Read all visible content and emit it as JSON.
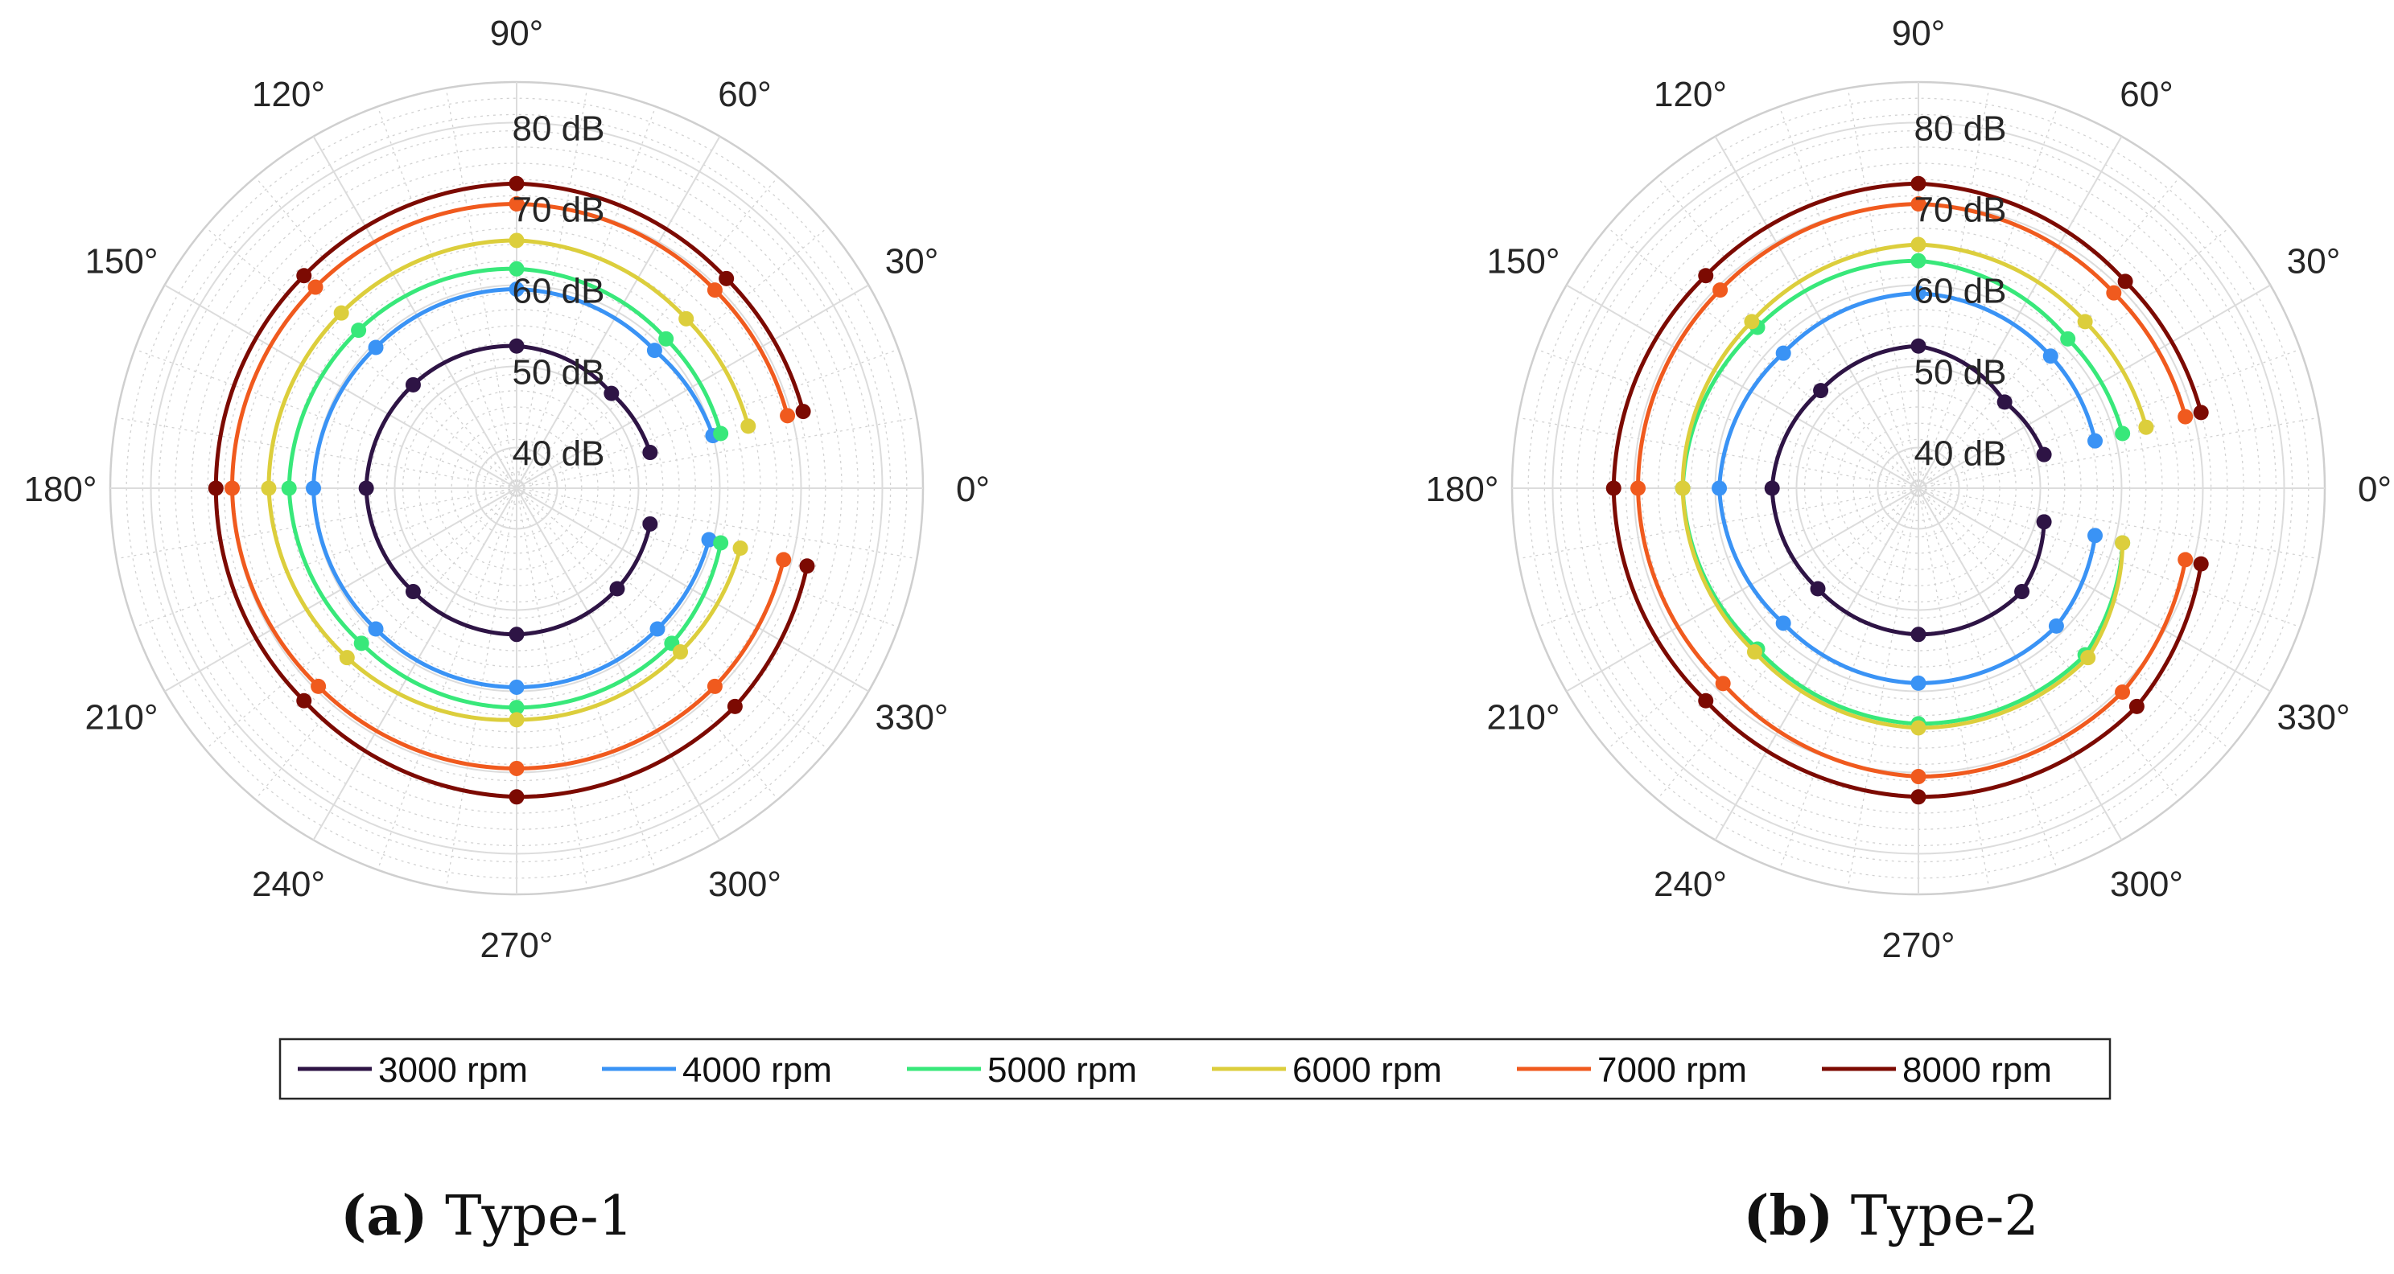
{
  "chart_data": {
    "shared": {
      "type": "polar-line",
      "r_range": [
        35,
        85
      ],
      "r_ticks": [
        40,
        50,
        60,
        70,
        80
      ],
      "r_tick_labels": [
        "40 dB",
        "50 dB",
        "60 dB",
        "70 dB",
        "80 dB"
      ],
      "theta_tick_labels": [
        "0°",
        "30°",
        "60°",
        "90°",
        "120°",
        "150°",
        "180°",
        "210°",
        "240°",
        "270°",
        "300°",
        "330°"
      ],
      "theta_major_step_deg": 30,
      "theta_minor_step_deg": 10,
      "r_minor_step": 2,
      "sample_angles_deg": [
        15,
        45,
        90,
        135,
        180,
        225,
        270,
        315,
        345
      ],
      "legend": [
        {
          "name": "3000 rpm",
          "color": "#2e1445"
        },
        {
          "name": "4000 rpm",
          "color": "#3a93f5"
        },
        {
          "name": "5000 rpm",
          "color": "#38e87a"
        },
        {
          "name": "6000 rpm",
          "color": "#dcce3c"
        },
        {
          "name": "7000 rpm",
          "color": "#f05a1e"
        },
        {
          "name": "8000 rpm",
          "color": "#7c0a02"
        }
      ]
    },
    "plots": [
      {
        "panel": "a",
        "caption_bold": "(a)",
        "caption_text": " Type-1",
        "series": [
          {
            "name": "3000 rpm",
            "values": [
              52,
              51.5,
              52.5,
              53,
              53.5,
              53,
              53,
              52.5,
              52
            ]
          },
          {
            "name": "4000 rpm",
            "values": [
              60,
              59,
              59.5,
              59.5,
              60,
              59.5,
              59.5,
              59.5,
              59.5
            ]
          },
          {
            "name": "5000 rpm",
            "values": [
              61,
              61,
              62,
              62.5,
              63,
              62,
              62,
              62,
              61
            ]
          },
          {
            "name": "6000 rpm",
            "values": [
              64.5,
              64.5,
              65.5,
              65.5,
              65.5,
              64.5,
              63.5,
              63.5,
              63.5
            ]
          },
          {
            "name": "7000 rpm",
            "values": [
              69.5,
              69.5,
              70,
              70,
              70,
              69.5,
              69.5,
              69.5,
              69
            ]
          },
          {
            "name": "8000 rpm",
            "values": [
              71.5,
              71.5,
              72.5,
              72,
              72,
              72,
              73,
              73,
              72
            ]
          }
        ]
      },
      {
        "panel": "b",
        "caption_bold": "(b)",
        "caption_text": " Type-2",
        "series": [
          {
            "name": "3000 rpm",
            "values": [
              51,
              50,
              52.5,
              52,
              53,
              52.5,
              53,
              53,
              51
            ]
          },
          {
            "name": "4000 rpm",
            "values": [
              57.5,
              58,
              59,
              58.5,
              59.5,
              58.5,
              59,
              59,
              57.5
            ]
          },
          {
            "name": "5000 rpm",
            "values": [
              61,
              61,
              63,
              63,
              64,
              63,
              64,
              64,
              61
            ]
          },
          {
            "name": "6000 rpm",
            "values": [
              64,
              64,
              65,
              64,
              64,
              63.5,
              64.5,
              64.5,
              61
            ]
          },
          {
            "name": "7000 rpm",
            "values": [
              69,
              69,
              70,
              69.5,
              69.5,
              69,
              70.5,
              70.5,
              69
            ]
          },
          {
            "name": "8000 rpm",
            "values": [
              71,
              71,
              72.5,
              72,
              72.5,
              72,
              73,
              73,
              71
            ]
          }
        ]
      }
    ]
  }
}
